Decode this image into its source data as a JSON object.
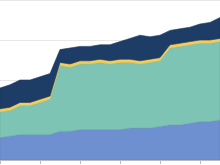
{
  "chart_data": {
    "type": "area",
    "stacked": true,
    "grid": true,
    "tick_labels": false,
    "x": [
      0,
      1,
      2,
      3,
      4,
      5,
      6,
      7,
      8,
      9,
      10,
      11,
      12,
      13,
      14,
      15,
      16,
      17,
      18,
      19,
      20,
      21,
      22
    ],
    "xlim": [
      0,
      22
    ],
    "xticks": [
      0,
      4,
      8,
      12,
      16,
      20
    ],
    "ylim": [
      0,
      100
    ],
    "yticks": [
      0,
      25,
      50,
      75,
      100
    ],
    "series": [
      {
        "color": "#6e8fd0",
        "values": [
          14,
          15,
          16,
          16,
          16,
          16,
          18,
          18,
          19,
          19,
          19,
          19,
          19,
          20,
          20,
          20,
          21,
          22,
          22,
          23,
          24,
          24,
          25
        ]
      },
      {
        "color": "#7ec4b5",
        "values": [
          16,
          16,
          18,
          18,
          20,
          22,
          41,
          40,
          41,
          41,
          42,
          41,
          42,
          41,
          40,
          41,
          41,
          48,
          49,
          49,
          49,
          49,
          49
        ]
      },
      {
        "color": "#f2cf5b",
        "values": [
          2,
          2,
          2,
          2,
          2,
          2,
          2,
          2,
          2,
          2,
          2,
          2,
          2,
          2,
          2,
          2,
          2,
          2,
          2,
          2,
          2,
          2,
          2
        ]
      },
      {
        "color": "#1e3d66",
        "values": [
          13,
          14,
          14,
          14,
          14,
          14,
          8,
          10,
          9,
          9,
          9,
          10,
          11,
          13,
          16,
          14,
          14,
          9,
          9,
          9,
          10,
          11,
          13
        ]
      }
    ]
  }
}
